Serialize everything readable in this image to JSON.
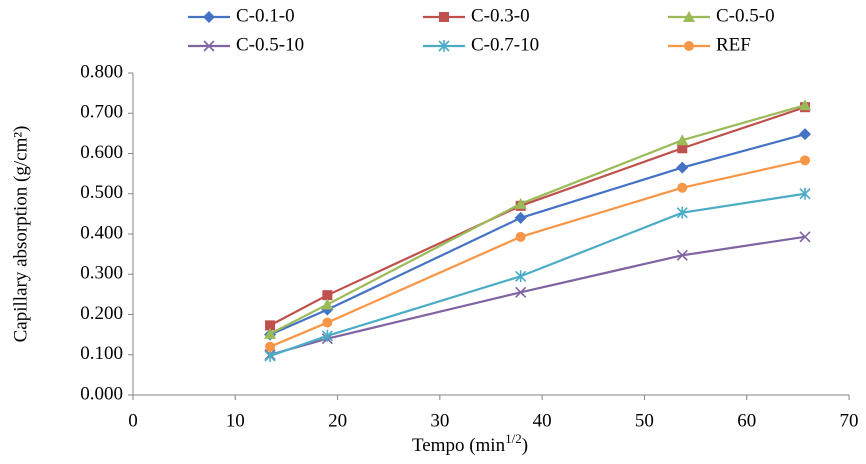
{
  "chart_data": {
    "type": "line",
    "xlabel": [
      "Tempo (min",
      "1/2",
      ")"
    ],
    "ylabel": "Capillary absorption (g/cm²)",
    "x": [
      13.4,
      19.0,
      37.9,
      53.7,
      65.7
    ],
    "xlim": [
      0,
      70
    ],
    "xticks": [
      0,
      10,
      20,
      30,
      40,
      50,
      60,
      70
    ],
    "ylim": [
      0,
      0.8
    ],
    "yticks": [
      {
        "value": 0,
        "label": "0.000"
      },
      {
        "value": 0.1,
        "label": "0.100"
      },
      {
        "value": 0.2,
        "label": "0.200"
      },
      {
        "value": 0.3,
        "label": "0.300"
      },
      {
        "value": 0.4,
        "label": "0.400"
      },
      {
        "value": 0.5,
        "label": "0.500"
      },
      {
        "value": 0.6,
        "label": "0.600"
      },
      {
        "value": 0.7,
        "label": "0.700"
      },
      {
        "value": 0.8,
        "label": "0.800"
      }
    ],
    "grid": false,
    "legend": "top",
    "series": [
      {
        "name": "C-0.1-0",
        "color": "#4472c4",
        "marker": "diamond",
        "values": [
          0.15,
          0.212,
          0.44,
          0.565,
          0.648
        ]
      },
      {
        "name": "C-0.3-0",
        "color": "#c0504d",
        "marker": "square",
        "values": [
          0.173,
          0.248,
          0.47,
          0.613,
          0.715
        ]
      },
      {
        "name": "C-0.5-0",
        "color": "#9bbb59",
        "marker": "triangle",
        "values": [
          0.152,
          0.225,
          0.475,
          0.633,
          0.72
        ]
      },
      {
        "name": "C-0.5-10",
        "color": "#8064a2",
        "marker": "x",
        "values": [
          0.1,
          0.14,
          0.255,
          0.347,
          0.393
        ]
      },
      {
        "name": "C-0.7-10",
        "color": "#4bacc6",
        "marker": "star",
        "values": [
          0.097,
          0.147,
          0.295,
          0.453,
          0.5
        ]
      },
      {
        "name": "REF",
        "color": "#f79646",
        "marker": "circle",
        "values": [
          0.12,
          0.18,
          0.393,
          0.515,
          0.583
        ]
      }
    ]
  }
}
